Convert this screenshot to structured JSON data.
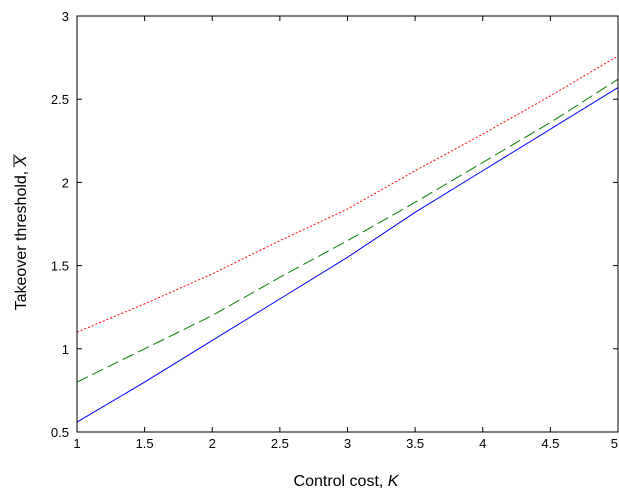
{
  "chart_data": {
    "type": "line",
    "title": "",
    "xlabel": "Control cost, ",
    "xlabel_var": "K",
    "ylabel": "Takeover threshold, ",
    "ylabel_var": "X",
    "xlim": [
      1,
      5
    ],
    "ylim": [
      0.5,
      3
    ],
    "xticks": [
      "1",
      "1.5",
      "2",
      "2.5",
      "3",
      "3.5",
      "4",
      "4.5",
      "5"
    ],
    "yticks": [
      "0.5",
      "1",
      "1.5",
      "2",
      "2.5",
      "3"
    ],
    "grid": false,
    "legend": "none",
    "x": [
      1,
      1.5,
      2,
      2.5,
      3,
      3.5,
      4,
      4.5,
      5
    ],
    "series": [
      {
        "color": "#ff0000",
        "style": "dotted",
        "values": [
          1.1,
          1.27,
          1.45,
          1.65,
          1.84,
          2.07,
          2.29,
          2.52,
          2.76
        ]
      },
      {
        "color": "#008000",
        "style": "dashed",
        "values": [
          0.8,
          1.0,
          1.2,
          1.43,
          1.65,
          1.88,
          2.12,
          2.36,
          2.62
        ]
      },
      {
        "color": "#0000ff",
        "style": "solid",
        "values": [
          0.56,
          0.8,
          1.05,
          1.3,
          1.55,
          1.82,
          2.07,
          2.32,
          2.57
        ]
      }
    ]
  }
}
